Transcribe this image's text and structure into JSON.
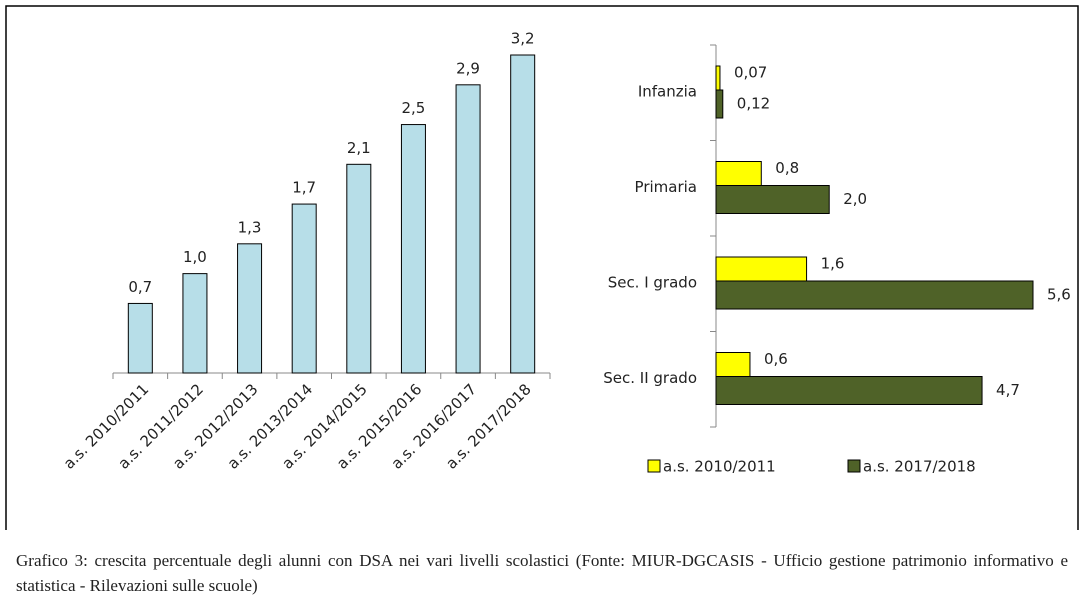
{
  "chart_data": [
    {
      "type": "bar",
      "categories": [
        "a.s. 2010/2011",
        "a.s. 2011/2012",
        "a.s. 2012/2013",
        "a.s. 2013/2014",
        "a.s. 2014/2015",
        "a.s. 2015/2016",
        "a.s. 2016/2017",
        "a.s. 2017/2018"
      ],
      "values": [
        0.7,
        1.0,
        1.3,
        1.7,
        2.1,
        2.5,
        2.9,
        3.2
      ],
      "value_labels": [
        "0,7",
        "1,0",
        "1,3",
        "1,7",
        "2,1",
        "2,5",
        "2,9",
        "3,2"
      ],
      "color": "#b7dee8"
    },
    {
      "type": "hbar",
      "categories": [
        "Infanzia",
        "Primaria",
        "Sec. I grado",
        "Sec. II grado"
      ],
      "series": [
        {
          "name": "a.s. 2010/2011",
          "color": "#ffff00",
          "values": [
            0.07,
            0.8,
            1.6,
            0.6
          ],
          "value_labels": [
            "0,07",
            "0,8",
            "1,6",
            "0,6"
          ]
        },
        {
          "name": "a.s. 2017/2018",
          "color": "#4f6228",
          "values": [
            0.12,
            2.0,
            5.6,
            4.7
          ],
          "value_labels": [
            "0,12",
            "2,0",
            "5,6",
            "4,7"
          ]
        }
      ],
      "legend": "bottom"
    }
  ],
  "caption": "Grafico 3: crescita percentuale degli alunni con DSA nei vari livelli scolastici (Fonte: MIUR-DGCASIS - Ufficio gestione patrimonio informativo e statistica - Rilevazioni sulle scuole)"
}
